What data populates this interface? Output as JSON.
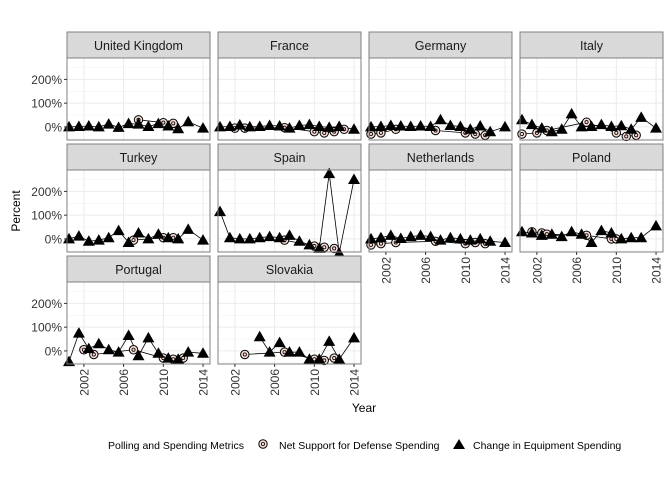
{
  "chart_data": {
    "type": "line",
    "xlabel": "Year",
    "ylabel": "Percent",
    "x_ticks": [
      2002,
      2006,
      2010,
      2014
    ],
    "xlim": [
      2000.3,
      2014.7
    ],
    "y_ticks": [
      0,
      100,
      200
    ],
    "y_tick_labels": [
      "0%",
      "100%",
      "200%"
    ],
    "ylim": [
      -55,
      290
    ],
    "grid": true,
    "legend": {
      "title": "Polling and Spending Metrics",
      "placement": "bottom",
      "entries": [
        {
          "label": "Net Support for Defense Spending",
          "marker": "circle"
        },
        {
          "label": "Change in Equipment Spending",
          "marker": "triangle"
        }
      ]
    },
    "colors": {
      "panel_border": "#808080",
      "strip_fill": "#d9d9d9",
      "grid_major": "#ebebeb",
      "grid_minor": "#f4f4f4",
      "circle_fill": "#f8ded6",
      "mark": "#000000"
    },
    "panels": [
      {
        "title": "United Kingdom",
        "net_support": [
          [
            2007.5,
            30
          ],
          [
            2010,
            18
          ],
          [
            2011,
            15
          ]
        ],
        "equipment": [
          [
            2000.5,
            0
          ],
          [
            2001.5,
            2
          ],
          [
            2002.5,
            4
          ],
          [
            2003.5,
            0
          ],
          [
            2004.5,
            12
          ],
          [
            2005.5,
            -2
          ],
          [
            2006.5,
            14
          ],
          [
            2007.5,
            12
          ],
          [
            2008.5,
            2
          ],
          [
            2009.5,
            14
          ],
          [
            2010.5,
            4
          ],
          [
            2011.5,
            -8
          ],
          [
            2012.5,
            22
          ],
          [
            2014,
            -5
          ]
        ]
      },
      {
        "title": "France",
        "net_support": [
          [
            2002,
            -5
          ],
          [
            2003,
            -5
          ],
          [
            2007,
            -3
          ],
          [
            2010,
            -20
          ],
          [
            2011,
            -25
          ],
          [
            2012,
            -20
          ],
          [
            2013,
            -10
          ]
        ],
        "equipment": [
          [
            2000.5,
            0
          ],
          [
            2001.5,
            2
          ],
          [
            2002.5,
            8
          ],
          [
            2003.5,
            0
          ],
          [
            2004.5,
            2
          ],
          [
            2005.5,
            6
          ],
          [
            2006.5,
            4
          ],
          [
            2007.5,
            -5
          ],
          [
            2008.5,
            6
          ],
          [
            2009.5,
            10
          ],
          [
            2010.5,
            2
          ],
          [
            2011.5,
            -2
          ],
          [
            2012.5,
            2
          ],
          [
            2014,
            -10
          ]
        ]
      },
      {
        "title": "Germany",
        "net_support": [
          [
            2000.5,
            -30
          ],
          [
            2001.5,
            -25
          ],
          [
            2003,
            -10
          ],
          [
            2007,
            -15
          ],
          [
            2010,
            -25
          ],
          [
            2011,
            -30
          ],
          [
            2012,
            -35
          ]
        ],
        "equipment": [
          [
            2000.5,
            0
          ],
          [
            2001.5,
            2
          ],
          [
            2002.5,
            6
          ],
          [
            2003.5,
            4
          ],
          [
            2004.5,
            2
          ],
          [
            2005.5,
            4
          ],
          [
            2006.5,
            2
          ],
          [
            2007.5,
            30
          ],
          [
            2008.5,
            6
          ],
          [
            2009.5,
            2
          ],
          [
            2010.5,
            -10
          ],
          [
            2011.5,
            4
          ],
          [
            2012.5,
            -20
          ],
          [
            2014,
            0
          ]
        ]
      },
      {
        "title": "Italy",
        "net_support": [
          [
            2000.5,
            -30
          ],
          [
            2002,
            -25
          ],
          [
            2003,
            -15
          ],
          [
            2007,
            20
          ],
          [
            2010,
            -25
          ],
          [
            2011,
            -40
          ],
          [
            2012,
            -35
          ]
        ],
        "equipment": [
          [
            2000.5,
            30
          ],
          [
            2001.5,
            10
          ],
          [
            2002.5,
            -5
          ],
          [
            2003.5,
            -20
          ],
          [
            2004.5,
            -10
          ],
          [
            2005.5,
            55
          ],
          [
            2006.5,
            0
          ],
          [
            2007.5,
            2
          ],
          [
            2008.5,
            10
          ],
          [
            2009.5,
            2
          ],
          [
            2010.5,
            5
          ],
          [
            2011.5,
            -10
          ],
          [
            2012.5,
            40
          ],
          [
            2014,
            -5
          ]
        ]
      },
      {
        "title": "Turkey",
        "net_support": [
          [
            2007,
            -5
          ],
          [
            2010,
            5
          ],
          [
            2011,
            5
          ]
        ],
        "equipment": [
          [
            2000.5,
            0
          ],
          [
            2001.5,
            12
          ],
          [
            2002.5,
            -10
          ],
          [
            2003.5,
            -5
          ],
          [
            2004.5,
            5
          ],
          [
            2005.5,
            35
          ],
          [
            2006.5,
            -15
          ],
          [
            2007.5,
            25
          ],
          [
            2008.5,
            0
          ],
          [
            2009.5,
            20
          ],
          [
            2010.5,
            5
          ],
          [
            2011.5,
            0
          ],
          [
            2012.5,
            40
          ],
          [
            2014,
            -5
          ]
        ]
      },
      {
        "title": "Spain",
        "net_support": [
          [
            2007,
            -5
          ],
          [
            2010,
            -30
          ],
          [
            2011,
            -35
          ],
          [
            2012,
            -40
          ]
        ],
        "equipment": [
          [
            2000.5,
            115
          ],
          [
            2001.5,
            5
          ],
          [
            2002.5,
            0
          ],
          [
            2003.5,
            0
          ],
          [
            2004.5,
            5
          ],
          [
            2005.5,
            10
          ],
          [
            2006.5,
            5
          ],
          [
            2007.5,
            15
          ],
          [
            2008.5,
            -10
          ],
          [
            2009.5,
            -25
          ],
          [
            2010.5,
            -40
          ],
          [
            2011.5,
            275
          ],
          [
            2012.5,
            -60
          ],
          [
            2014,
            250
          ]
        ]
      },
      {
        "title": "Netherlands",
        "net_support": [
          [
            2000.5,
            -25
          ],
          [
            2001.5,
            -20
          ],
          [
            2003,
            -15
          ],
          [
            2007,
            -10
          ],
          [
            2010,
            -20
          ],
          [
            2011,
            -15
          ],
          [
            2012,
            -20
          ]
        ],
        "equipment": [
          [
            2000.5,
            0
          ],
          [
            2001.5,
            5
          ],
          [
            2002.5,
            15
          ],
          [
            2003.5,
            2
          ],
          [
            2004.5,
            10
          ],
          [
            2005.5,
            15
          ],
          [
            2006.5,
            10
          ],
          [
            2007.5,
            -5
          ],
          [
            2008.5,
            5
          ],
          [
            2009.5,
            0
          ],
          [
            2010.5,
            -5
          ],
          [
            2011.5,
            0
          ],
          [
            2012.5,
            -10
          ],
          [
            2014,
            -15
          ]
        ]
      },
      {
        "title": "Poland",
        "net_support": [
          [
            2001.5,
            30
          ],
          [
            2002.5,
            25
          ],
          [
            2003,
            20
          ],
          [
            2007,
            15
          ],
          [
            2009.5,
            0
          ],
          [
            2010,
            0
          ]
        ],
        "equipment": [
          [
            2000.5,
            30
          ],
          [
            2001.5,
            25
          ],
          [
            2002.5,
            15
          ],
          [
            2003.5,
            20
          ],
          [
            2004.5,
            10
          ],
          [
            2005.5,
            30
          ],
          [
            2006.5,
            20
          ],
          [
            2007.5,
            -15
          ],
          [
            2008.5,
            35
          ],
          [
            2009.5,
            25
          ],
          [
            2010.5,
            0
          ],
          [
            2011.5,
            5
          ],
          [
            2012.5,
            5
          ],
          [
            2014,
            55
          ]
        ]
      },
      {
        "title": "Portugal",
        "net_support": [
          [
            2002,
            5
          ],
          [
            2003,
            -15
          ],
          [
            2007,
            5
          ],
          [
            2010,
            -30
          ],
          [
            2011,
            -35
          ],
          [
            2012,
            -30
          ]
        ],
        "equipment": [
          [
            2000.5,
            -45
          ],
          [
            2001.5,
            75
          ],
          [
            2002.5,
            10
          ],
          [
            2003.5,
            30
          ],
          [
            2004.5,
            5
          ],
          [
            2005.5,
            -5
          ],
          [
            2006.5,
            65
          ],
          [
            2007.5,
            -20
          ],
          [
            2008.5,
            55
          ],
          [
            2009.5,
            -10
          ],
          [
            2010.5,
            -30
          ],
          [
            2011.5,
            -35
          ],
          [
            2012.5,
            -5
          ],
          [
            2014,
            -10
          ]
        ]
      },
      {
        "title": "Slovakia",
        "net_support": [
          [
            2003,
            -15
          ],
          [
            2007,
            -5
          ],
          [
            2010,
            -35
          ],
          [
            2011,
            -40
          ],
          [
            2012,
            -30
          ]
        ],
        "equipment": [
          [
            2004.5,
            60
          ],
          [
            2005.5,
            -5
          ],
          [
            2006.5,
            35
          ],
          [
            2007.5,
            -5
          ],
          [
            2008.5,
            -5
          ],
          [
            2009.5,
            -35
          ],
          [
            2010.5,
            -35
          ],
          [
            2011.5,
            40
          ],
          [
            2012.5,
            -35
          ],
          [
            2014,
            55
          ]
        ]
      }
    ]
  }
}
